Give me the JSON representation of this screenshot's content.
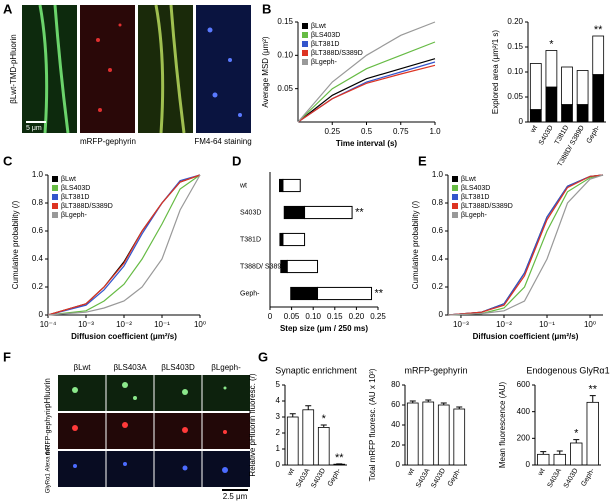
{
  "panel_letters": [
    "A",
    "B",
    "C",
    "D",
    "E",
    "F",
    "G"
  ],
  "image_panels": {
    "a": {
      "side_label": "βLwt-TMD-pHluorin",
      "scale_bar": "5 μm",
      "labels": [
        "mRFP-gephyrin",
        "FM4-64 staining"
      ]
    },
    "f": {
      "columns": [
        "βLwt",
        "βLS403A",
        "βLS403D",
        "βLgeph-"
      ],
      "rows": [
        "pHluorin",
        "mRFP-gephyrin",
        "GlyRα1 Alexa 647"
      ],
      "scale_bar": "2.5 μm"
    }
  },
  "chart_data": [
    {
      "type": "line",
      "xlabel": "Time interval (s)",
      "ylabel": "Average MSD (μm²)",
      "x": [
        0,
        0.25,
        0.5,
        0.75,
        1
      ],
      "xlim": [
        0,
        1
      ],
      "xticks": [
        0.25,
        0.5,
        0.75,
        {
          "value": 1,
          "label": "1.0"
        }
      ],
      "ylim": [
        0,
        0.15
      ],
      "yticks": [
        0.05,
        {
          "value": 0.1,
          "label": "0.10"
        },
        0.15
      ],
      "legend": "upper left",
      "series": [
        {
          "name": "βLwt",
          "color": "#000000",
          "values": [
            0,
            0.04,
            0.065,
            0.08,
            0.095
          ]
        },
        {
          "name": "βLS403D",
          "color": "#66bb44",
          "values": [
            0,
            0.05,
            0.08,
            0.1,
            0.12
          ]
        },
        {
          "name": "βLT381D",
          "color": "#3355cc",
          "values": [
            0,
            0.035,
            0.06,
            0.075,
            0.09
          ]
        },
        {
          "name": "βLT388D/S389D",
          "color": "#dd3322",
          "values": [
            0,
            0.035,
            0.058,
            0.072,
            0.085
          ]
        },
        {
          "name": "βLgeph-",
          "color": "#999999",
          "values": [
            0,
            0.06,
            0.1,
            0.13,
            0.15
          ]
        }
      ]
    },
    {
      "type": "bar",
      "stacked": true,
      "ylabel": "Explored area (μm²/1 s)",
      "categories": [
        "wt",
        "S403D",
        "T381D",
        "T388D/ S389D",
        "Geph-"
      ],
      "ylim": [
        0,
        0.2
      ],
      "yticks": [
        0,
        0.05,
        {
          "value": 0.1,
          "label": "0.10"
        },
        0.15,
        {
          "value": 0.2,
          "label": "0.20"
        }
      ],
      "series": [
        {
          "color": "#000000",
          "values": [
            0.025,
            0.07,
            0.035,
            0.035,
            0.095
          ]
        },
        {
          "color": "#ffffff",
          "values": [
            0.092,
            0.073,
            0.075,
            0.068,
            0.077
          ]
        }
      ],
      "annotations": [
        {
          "text": "*",
          "category": 1
        },
        {
          "text": "**",
          "category": 4
        }
      ]
    },
    {
      "type": "line",
      "xscale": "log",
      "xlabel": "Diffusion coefficient (μm²/s)",
      "ylabel": "Cumulative probability (/)",
      "x": [
        0.0001,
        0.001,
        0.003,
        0.01,
        0.03,
        0.1,
        0.3,
        1
      ],
      "xlim": [
        0.0001,
        1
      ],
      "xticks": [
        {
          "value": 0.0001,
          "label": "10⁻⁴"
        },
        {
          "value": 0.001,
          "label": "10⁻³"
        },
        {
          "value": 0.01,
          "label": "10⁻²"
        },
        {
          "value": 0.1,
          "label": "10⁻¹"
        },
        {
          "value": 1,
          "label": "10⁰"
        }
      ],
      "ylim": [
        0,
        1
      ],
      "yticks": [
        0,
        0.2,
        0.4,
        0.6,
        0.8,
        {
          "value": 1,
          "label": "1.0"
        }
      ],
      "legend": "upper left",
      "series": [
        {
          "name": "βLwt",
          "color": "#000000",
          "values": [
            0,
            0.08,
            0.2,
            0.38,
            0.6,
            0.8,
            0.95,
            1
          ]
        },
        {
          "name": "βLS403D",
          "color": "#66bb44",
          "values": [
            0,
            0.03,
            0.1,
            0.22,
            0.4,
            0.65,
            0.9,
            1
          ]
        },
        {
          "name": "βLT381D",
          "color": "#3355cc",
          "values": [
            0,
            0.07,
            0.18,
            0.35,
            0.58,
            0.8,
            0.96,
            1
          ]
        },
        {
          "name": "βLT388D/S389D",
          "color": "#dd3322",
          "values": [
            0,
            0.08,
            0.2,
            0.37,
            0.6,
            0.8,
            0.95,
            1
          ]
        },
        {
          "name": "βLgeph-",
          "color": "#999999",
          "values": [
            0,
            0.02,
            0.05,
            0.1,
            0.2,
            0.4,
            0.75,
            1
          ]
        }
      ]
    },
    {
      "type": "hbar",
      "xlabel": "Step size (μm / 250 ms)",
      "categories": [
        "wt",
        "S403D",
        "T381D",
        "T388D/ S389D",
        "Geph-"
      ],
      "xlim": [
        0,
        0.25
      ],
      "xticks": [
        0,
        0.05,
        {
          "value": 0.1,
          "label": "0.10"
        },
        0.15,
        {
          "value": 0.2,
          "label": "0.20"
        },
        0.25
      ],
      "low": [
        0.022,
        0.033,
        0.023,
        0.025,
        0.048
      ],
      "mid": [
        0.03,
        0.08,
        0.03,
        0.04,
        0.11
      ],
      "high": [
        0.07,
        0.19,
        0.08,
        0.11,
        0.235
      ],
      "colors": [
        "#000000",
        "#ffffff"
      ],
      "annotations": [
        {
          "text": "**",
          "category": 1
        },
        {
          "text": "**",
          "category": 4
        }
      ]
    },
    {
      "type": "line",
      "xscale": "log",
      "xlabel": "Diffusion coefficient (μm²/s)",
      "ylabel": "Cumulative probability (/)",
      "x": [
        0.0005,
        0.003,
        0.01,
        0.03,
        0.1,
        0.3,
        1,
        2
      ],
      "xlim": [
        0.0005,
        2
      ],
      "xticks": [
        {
          "value": 0.001,
          "label": "10⁻³"
        },
        {
          "value": 0.01,
          "label": "10⁻²"
        },
        {
          "value": 0.1,
          "label": "10⁻¹"
        },
        {
          "value": 1,
          "label": "10⁰"
        }
      ],
      "ylim": [
        0,
        1
      ],
      "yticks": [
        0,
        0.2,
        0.4,
        0.6,
        0.8,
        {
          "value": 1,
          "label": "1.0"
        }
      ],
      "legend": "upper left",
      "series": [
        {
          "name": "βLwt",
          "color": "#000000",
          "values": [
            0,
            0.02,
            0.08,
            0.3,
            0.7,
            0.92,
            0.99,
            1
          ]
        },
        {
          "name": "βLS403D",
          "color": "#66bb44",
          "values": [
            0,
            0.01,
            0.05,
            0.2,
            0.6,
            0.88,
            0.98,
            1
          ]
        },
        {
          "name": "βLT381D",
          "color": "#3355cc",
          "values": [
            0,
            0.02,
            0.08,
            0.3,
            0.7,
            0.92,
            0.99,
            1
          ]
        },
        {
          "name": "βLT388D/S389D",
          "color": "#dd3322",
          "values": [
            0,
            0.02,
            0.07,
            0.28,
            0.68,
            0.91,
            0.99,
            1
          ]
        },
        {
          "name": "βLgeph-",
          "color": "#999999",
          "values": [
            0,
            0.01,
            0.03,
            0.1,
            0.4,
            0.8,
            0.97,
            1
          ]
        }
      ]
    },
    {
      "type": "bar",
      "title": "Synaptic enrichment",
      "ylabel": "Relative pHluorin fluoresc. (/)",
      "categories": [
        "wt",
        "S403A",
        "S403D",
        "Geph-"
      ],
      "values": [
        3.0,
        3.45,
        2.35,
        0.05
      ],
      "errors": [
        0.2,
        0.25,
        0.15,
        0.02
      ],
      "color": "#ffffff",
      "ylim": [
        0,
        5
      ],
      "yticks": [
        0,
        1,
        2,
        3,
        4,
        5
      ],
      "annotations": [
        {
          "text": "*",
          "category": 2
        },
        {
          "text": "**",
          "category": 3
        }
      ]
    },
    {
      "type": "bar",
      "title": "mRFP-gephyrin",
      "ylabel": "Total mRFP fluoresc. (AU x 10³)",
      "categories": [
        "wt",
        "S403A",
        "S403D",
        "Geph-"
      ],
      "values": [
        62,
        63,
        60,
        56
      ],
      "errors": [
        2,
        2,
        2,
        2
      ],
      "color": "#ffffff",
      "ylim": [
        0,
        80
      ],
      "yticks": [
        0,
        20,
        40,
        60,
        80
      ]
    },
    {
      "type": "bar",
      "title": "Endogenous GlyRα1",
      "ylabel": "Mean fluorescence (AU)",
      "categories": [
        "wt",
        "S403A",
        "S403D",
        "Geph-"
      ],
      "values": [
        80,
        80,
        165,
        470
      ],
      "errors": [
        20,
        25,
        25,
        50
      ],
      "color": "#ffffff",
      "ylim": [
        0,
        600
      ],
      "yticks": [
        0,
        200,
        400,
        600
      ],
      "annotations": [
        {
          "text": "*",
          "category": 2
        },
        {
          "text": "**",
          "category": 3
        }
      ]
    }
  ]
}
